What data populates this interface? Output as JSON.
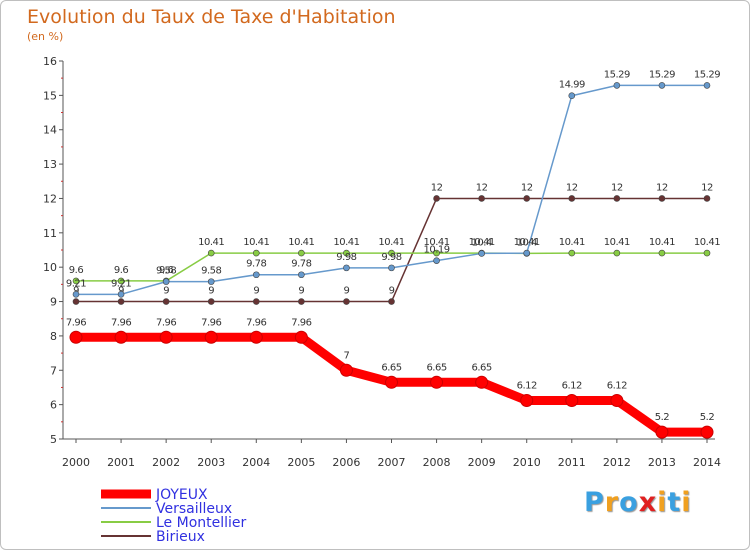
{
  "header": {
    "title": "Evolution du Taux de Taxe d'Habitation",
    "unit": "(en %)"
  },
  "logo": {
    "letters": [
      "P",
      "r",
      "o",
      "x",
      "i",
      "t",
      "i"
    ],
    "colors": [
      "#3aa0e0",
      "#f0a020",
      "#3aa0e0",
      "#e02020",
      "#f0a020",
      "#3aa0e0",
      "#f0a020"
    ]
  },
  "chart_data": {
    "type": "line",
    "title": "Evolution du Taux de Taxe d'Habitation",
    "ylabel": "(en %)",
    "x": [
      "2000",
      "2001",
      "2002",
      "2003",
      "2004",
      "2005",
      "2006",
      "2007",
      "2008",
      "2009",
      "2010",
      "2011",
      "2012",
      "2013",
      "2014"
    ],
    "ylim": [
      5,
      16
    ],
    "yticks": [
      "5",
      "6",
      "7",
      "8",
      "9",
      "10",
      "11",
      "12",
      "13",
      "14",
      "15",
      "16"
    ],
    "grid": false,
    "legend": "bottom-left",
    "series": [
      {
        "name": "JOYEUX",
        "color": "#ff0000",
        "bold": true,
        "values": [
          7.96,
          7.96,
          7.96,
          7.96,
          7.96,
          7.96,
          7,
          6.65,
          6.65,
          6.65,
          6.12,
          6.12,
          6.12,
          5.2,
          5.2
        ],
        "labels": [
          "7.96",
          "7.96",
          "7.96",
          "7.96",
          "7.96",
          "7.96",
          "7",
          "6.65",
          "6.65",
          "6.65",
          "6.12",
          "6.12",
          "6.12",
          "5.2",
          "5.2"
        ]
      },
      {
        "name": "Versailleux",
        "color": "#6699cc",
        "bold": false,
        "values": [
          9.21,
          9.21,
          9.58,
          9.58,
          9.78,
          9.78,
          9.98,
          9.98,
          10.19,
          10.4,
          10.41,
          14.99,
          15.29,
          15.29,
          15.29
        ],
        "labels": [
          "9.21",
          "9.21",
          "9.58",
          "9.58",
          "9.78",
          "9.78",
          "9.98",
          "9.98",
          "10.19",
          "10.4",
          "10.41",
          "14.99",
          "15.29",
          "15.29",
          "15.29"
        ]
      },
      {
        "name": "Le Montellier",
        "color": "#88cc44",
        "bold": false,
        "values": [
          9.6,
          9.6,
          9.6,
          10.41,
          10.41,
          10.41,
          10.41,
          10.41,
          10.41,
          10.41,
          10.4,
          10.41,
          10.41,
          10.41,
          10.41
        ],
        "labels": [
          "9.6",
          "9.6",
          "9.6",
          "10.41",
          "10.41",
          "10.41",
          "10.41",
          "10.41",
          "10.41",
          "10.41",
          "10.4",
          "10.41",
          "10.41",
          "10.41",
          "10.41"
        ]
      },
      {
        "name": "Birieux",
        "color": "#663333",
        "bold": false,
        "values": [
          9,
          9,
          9,
          9,
          9,
          9,
          9,
          9,
          12,
          12,
          12,
          12,
          12,
          12,
          12
        ],
        "labels": [
          "9",
          "9",
          "9",
          "9",
          "9",
          "9",
          "9",
          "9",
          "12",
          "12",
          "12",
          "12",
          "12",
          "12",
          "12"
        ]
      }
    ]
  }
}
